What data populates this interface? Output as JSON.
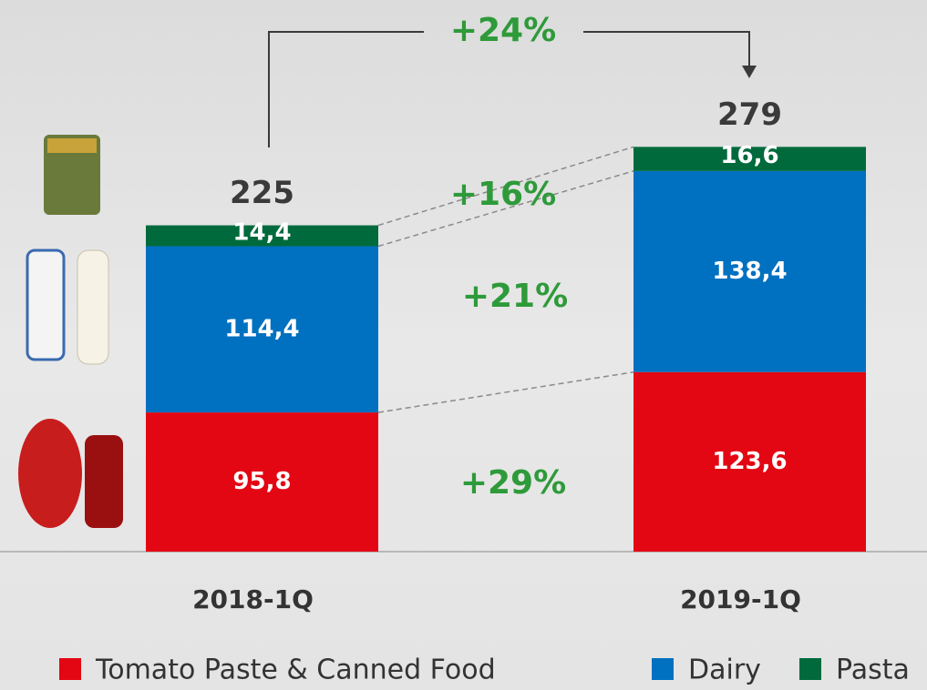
{
  "chart_data": {
    "type": "bar",
    "stacked": true,
    "categories": [
      "2018-1Q",
      "2019-1Q"
    ],
    "series": [
      {
        "name": "Tomato Paste & Canned Food",
        "color": "#e30613",
        "values": [
          95.8,
          123.6
        ],
        "value_labels": [
          "95,8",
          "123,6"
        ]
      },
      {
        "name": "Dairy",
        "color": "#0070c0",
        "values": [
          114.4,
          138.4
        ],
        "value_labels": [
          "114,4",
          "138,4"
        ]
      },
      {
        "name": "Pasta",
        "color": "#006a3c",
        "values": [
          14.4,
          16.6
        ],
        "value_labels": [
          "14,4",
          "16,6"
        ]
      }
    ],
    "totals": [
      225,
      279
    ],
    "annotations": [
      "+24%",
      "+16%",
      "+21%",
      "+29%"
    ]
  }
}
